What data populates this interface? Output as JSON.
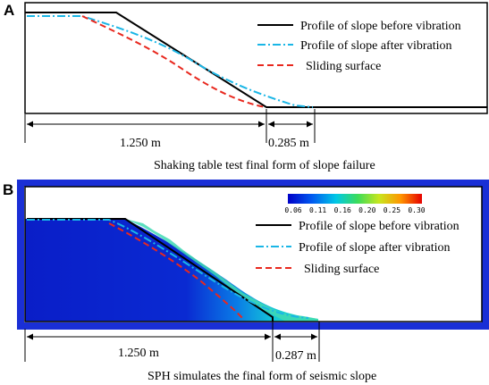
{
  "panel_a": {
    "letter": "A",
    "legend": {
      "before": "Profile of slope before vibration",
      "after": "Profile of slope after vibration",
      "sliding": "Sliding surface"
    },
    "dim_left": "1.250 m",
    "dim_right": "0.285 m",
    "caption": "Shaking table test final form of slope failure"
  },
  "panel_b": {
    "letter": "B",
    "colorbar": {
      "ticks": [
        "0.06",
        "0.11",
        "0.16",
        "0.20",
        "0.25",
        "0.30"
      ]
    },
    "legend": {
      "before": "Profile of slope before vibration",
      "after": "Profile of slope after vibration",
      "sliding": "Sliding surface"
    },
    "dim_left": "1.250 m",
    "dim_right": "0.287 m",
    "caption": "SPH simulates the final form of seismic slope"
  },
  "colors": {
    "before": "#000000",
    "after": "#1ab6e6",
    "sliding": "#e8281e",
    "frame_b": "#1a2fd6"
  }
}
